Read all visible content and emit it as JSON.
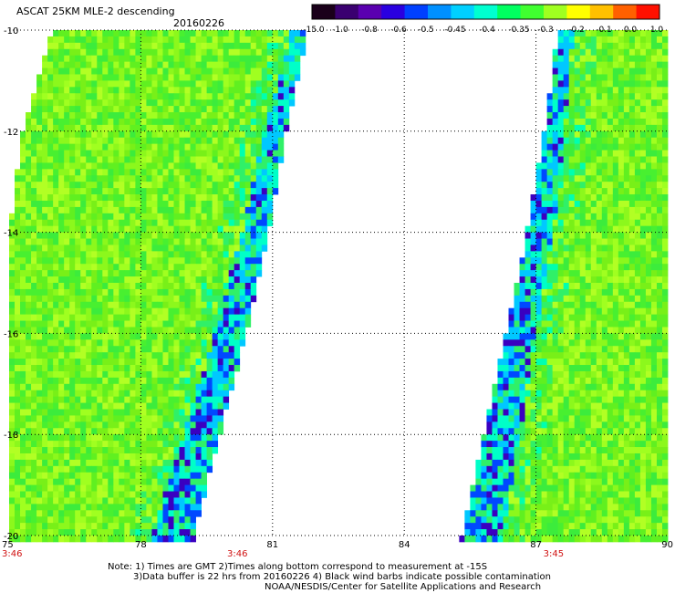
{
  "header": {
    "title": "ASCAT 25KM MLE-2 descending",
    "date": "20160226"
  },
  "colorbar": {
    "labels": [
      "-15.0",
      "-1.0",
      "-0.8",
      "-0.6",
      "-0.5",
      "-0.45",
      "-0.4",
      "-0.35",
      "-0.3",
      "-0.2",
      "-0.1",
      "0.0",
      "1.0"
    ],
    "colors": [
      "#1a001a",
      "#3a0070",
      "#5a00b0",
      "#2a00e0",
      "#0040ff",
      "#0090ff",
      "#00d0ff",
      "#00ffd0",
      "#00ff60",
      "#40ff30",
      "#a0ff20",
      "#ffff00",
      "#ffc000",
      "#ff6000",
      "#ff1000"
    ]
  },
  "chart_data": {
    "type": "heatmap",
    "title": "ASCAT 25KM MLE-2 descending",
    "subtitle": "20160226",
    "x_ticks": [
      75,
      78,
      81,
      84,
      87,
      90
    ],
    "y_ticks": [
      -10,
      -12,
      -14,
      -16,
      -18,
      -20
    ],
    "xlim": [
      75,
      90
    ],
    "ylim": [
      -20,
      -10
    ],
    "grid": true,
    "time_labels": [
      {
        "x": 75,
        "text": "3:46"
      },
      {
        "x": 80.2,
        "text": "3:46"
      },
      {
        "x": 87.4,
        "text": "3:45"
      }
    ],
    "swaths": [
      {
        "name": "west",
        "west_edge": [
          [
            -10,
            76
          ],
          [
            -12,
            75.3
          ],
          [
            -14,
            75
          ],
          [
            -20,
            75
          ]
        ],
        "east_edge": [
          [
            -10,
            81.8
          ],
          [
            -12,
            81.3
          ],
          [
            -14,
            80.9
          ],
          [
            -16,
            80.4
          ],
          [
            -18,
            79.8
          ],
          [
            -20,
            79.2
          ]
        ]
      },
      {
        "name": "east",
        "west_edge": [
          [
            -10,
            87.5
          ],
          [
            -12,
            87.2
          ],
          [
            -14,
            86.8
          ],
          [
            -16,
            86.3
          ],
          [
            -18,
            85.8
          ],
          [
            -20,
            85.3
          ]
        ],
        "east_edge": [
          [
            -10,
            90
          ],
          [
            -20,
            90
          ]
        ]
      }
    ],
    "low_value_band_note": "blue / cyan values (-0.8 to -0.4) concentrated along inner swath edges; bulk -0.3 to -0.2"
  },
  "footer": {
    "note_line1": "Note: 1) Times are GMT 2)Times along bottom correspond to measurement at -15S",
    "note_line2": "3)Data buffer is 22 hrs from 20160226 4) Black wind barbs indicate possible contamination",
    "credit": "NOAA/NESDIS/Center for Satellite Applications and Research"
  }
}
